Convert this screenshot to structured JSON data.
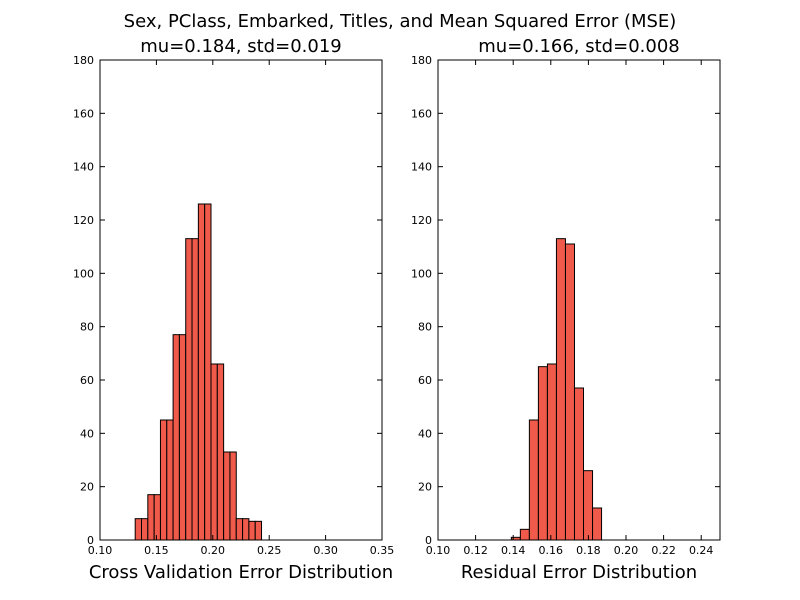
{
  "figure": {
    "suptitle": "Sex, PClass, Embarked, Titles, and Mean Squared Error (MSE)"
  },
  "colors": {
    "bar_fill": "#f05a4a",
    "bar_edge": "#000000"
  },
  "chart_data": [
    {
      "type": "bar",
      "title": "mu=0.184, std=0.019",
      "xlabel": "Cross Validation Error Distribution",
      "ylabel": "",
      "xlim": [
        0.1,
        0.35
      ],
      "ylim": [
        0,
        180
      ],
      "xticks": [
        "0.10",
        "0.15",
        "0.20",
        "0.25",
        "0.30",
        "0.35"
      ],
      "yticks": [
        "0",
        "20",
        "40",
        "60",
        "80",
        "100",
        "120",
        "140",
        "160",
        "180"
      ],
      "bin_edges": [
        0.1312,
        0.1368,
        0.1424,
        0.148,
        0.1536,
        0.1592,
        0.1648,
        0.1704,
        0.176,
        0.1816,
        0.1872,
        0.1928,
        0.1984,
        0.204,
        0.2096,
        0.2152,
        0.2208,
        0.2264,
        0.232,
        0.2376,
        0.2432
      ],
      "values": [
        8,
        8,
        17,
        17,
        45,
        45,
        77,
        77,
        113,
        113,
        126,
        126,
        66,
        66,
        33,
        33,
        8,
        8,
        7,
        7
      ],
      "grid": false
    },
    {
      "type": "bar",
      "title": "mu=0.166, std=0.008",
      "xlabel": "Residual Error Distribution",
      "ylabel": "",
      "xlim": [
        0.1,
        0.25
      ],
      "ylim": [
        0,
        180
      ],
      "xticks": [
        "0.10",
        "0.12",
        "0.14",
        "0.16",
        "0.18",
        "0.20",
        "0.22",
        "0.24"
      ],
      "yticks": [
        "0",
        "20",
        "40",
        "60",
        "80",
        "100",
        "120",
        "140",
        "160",
        "180"
      ],
      "bin_edges": [
        0.139,
        0.1438,
        0.1486,
        0.1534,
        0.1582,
        0.163,
        0.1678,
        0.1726,
        0.1774,
        0.1822,
        0.187
      ],
      "values": [
        1,
        4,
        45,
        65,
        66,
        113,
        111,
        57,
        26,
        12
      ],
      "grid": false
    }
  ]
}
